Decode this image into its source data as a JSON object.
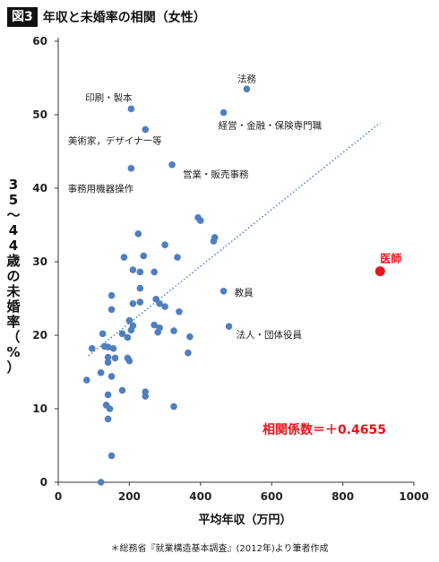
{
  "header": {
    "badge": "図3",
    "title": "年収と未婚率の相関（女性）"
  },
  "source": "＊総務省『就業構造基本調査』(2012年)より筆者作成",
  "chart_data": {
    "type": "scatter",
    "xlabel": "平均年収（万円）",
    "ylabel": "35〜44歳の未婚率（%）",
    "xlim": [
      0,
      1000
    ],
    "ylim": [
      0,
      60
    ],
    "xticks": [
      0,
      200,
      400,
      600,
      800,
      1000
    ],
    "yticks": [
      0,
      10,
      20,
      30,
      40,
      50,
      60
    ],
    "grid": false,
    "colors": {
      "points": "#4f7fc0",
      "highlight": "#e8131b",
      "trend": "#4f7fc0",
      "coef": "#e8131b"
    },
    "trendline": {
      "style": "dotted",
      "x": [
        85,
        905
      ],
      "y": [
        17.2,
        48.9
      ]
    },
    "correlation_label": "相関係数＝＋0.4655",
    "points": [
      {
        "x": 530,
        "y": 53.5,
        "label": "法務"
      },
      {
        "x": 205,
        "y": 50.8,
        "label": "印刷・製本"
      },
      {
        "x": 465,
        "y": 50.3,
        "label": "経営・金融・保険専門職"
      },
      {
        "x": 245,
        "y": 48.0,
        "label": "美術家，デザイナー等"
      },
      {
        "x": 205,
        "y": 42.7,
        "label": "事務用機器操作"
      },
      {
        "x": 320,
        "y": 43.2,
        "label": "営業・販売事務"
      },
      {
        "x": 905,
        "y": 28.7,
        "label": "医師",
        "highlight": true
      },
      {
        "x": 465,
        "y": 26.0,
        "label": "教員"
      },
      {
        "x": 480,
        "y": 21.2,
        "label": "法人・団体役員"
      },
      {
        "x": 393,
        "y": 36.0
      },
      {
        "x": 400,
        "y": 35.6
      },
      {
        "x": 440,
        "y": 33.3
      },
      {
        "x": 437,
        "y": 32.8
      },
      {
        "x": 225,
        "y": 33.8
      },
      {
        "x": 300,
        "y": 32.3
      },
      {
        "x": 335,
        "y": 30.6
      },
      {
        "x": 185,
        "y": 30.6
      },
      {
        "x": 240,
        "y": 30.8
      },
      {
        "x": 210,
        "y": 28.9
      },
      {
        "x": 230,
        "y": 28.6
      },
      {
        "x": 270,
        "y": 28.6
      },
      {
        "x": 230,
        "y": 26.4
      },
      {
        "x": 150,
        "y": 25.4
      },
      {
        "x": 210,
        "y": 24.3
      },
      {
        "x": 230,
        "y": 24.5
      },
      {
        "x": 275,
        "y": 24.9
      },
      {
        "x": 285,
        "y": 24.3
      },
      {
        "x": 300,
        "y": 23.9
      },
      {
        "x": 340,
        "y": 23.2
      },
      {
        "x": 150,
        "y": 23.5
      },
      {
        "x": 125,
        "y": 20.2
      },
      {
        "x": 200,
        "y": 22.0
      },
      {
        "x": 210,
        "y": 21.3
      },
      {
        "x": 270,
        "y": 21.4
      },
      {
        "x": 285,
        "y": 21.0
      },
      {
        "x": 180,
        "y": 20.2
      },
      {
        "x": 195,
        "y": 19.7
      },
      {
        "x": 280,
        "y": 20.4
      },
      {
        "x": 325,
        "y": 20.6
      },
      {
        "x": 370,
        "y": 19.8
      },
      {
        "x": 205,
        "y": 20.7
      },
      {
        "x": 95,
        "y": 18.2
      },
      {
        "x": 130,
        "y": 18.5
      },
      {
        "x": 140,
        "y": 18.4
      },
      {
        "x": 155,
        "y": 18.2
      },
      {
        "x": 140,
        "y": 17.0
      },
      {
        "x": 160,
        "y": 16.9
      },
      {
        "x": 195,
        "y": 16.9
      },
      {
        "x": 200,
        "y": 16.5
      },
      {
        "x": 365,
        "y": 17.6
      },
      {
        "x": 140,
        "y": 16.3
      },
      {
        "x": 120,
        "y": 14.9
      },
      {
        "x": 150,
        "y": 14.4
      },
      {
        "x": 80,
        "y": 13.9
      },
      {
        "x": 180,
        "y": 12.5
      },
      {
        "x": 140,
        "y": 11.9
      },
      {
        "x": 245,
        "y": 12.3
      },
      {
        "x": 245,
        "y": 11.7
      },
      {
        "x": 135,
        "y": 10.5
      },
      {
        "x": 145,
        "y": 10.0
      },
      {
        "x": 325,
        "y": 10.3
      },
      {
        "x": 140,
        "y": 8.6
      },
      {
        "x": 150,
        "y": 3.6
      },
      {
        "x": 120,
        "y": 0.0
      }
    ]
  }
}
